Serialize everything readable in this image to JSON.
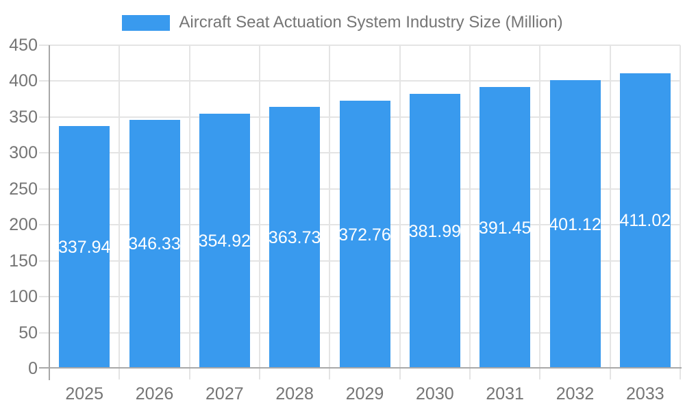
{
  "chart_data": {
    "type": "bar",
    "title": "Aircraft Seat Actuation System Industry Size (Million)",
    "legend": {
      "label": "Aircraft Seat Actuation System Industry Size (Million)",
      "position": "top"
    },
    "categories": [
      "2025",
      "2026",
      "2027",
      "2028",
      "2029",
      "2030",
      "2031",
      "2032",
      "2033"
    ],
    "values": [
      337.94,
      346.33,
      354.92,
      363.73,
      372.76,
      381.99,
      391.45,
      401.12,
      411.02
    ],
    "value_labels": [
      "337.94",
      "346.33",
      "354.92",
      "363.73",
      "372.76",
      "381.99",
      "391.45",
      "401.12",
      "411.02"
    ],
    "xlabel": "",
    "ylabel": "",
    "ylim": [
      0,
      450
    ],
    "ytick_interval": 50,
    "y_ticks": [
      "0",
      "50",
      "100",
      "150",
      "200",
      "250",
      "300",
      "350",
      "400",
      "450"
    ],
    "grid": true,
    "value_label_position": "inside-middle",
    "colors": {
      "bar": "#399AEE",
      "bar_label": "#FFFFFF",
      "axis_line": "#A8A8A8",
      "grid_line": "#E4E4E4",
      "tick_label": "#757575",
      "legend_text": "#757575",
      "background": "#FFFFFF"
    }
  }
}
